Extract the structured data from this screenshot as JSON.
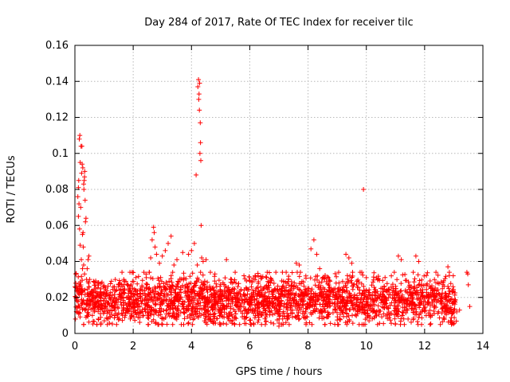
{
  "chart_data": {
    "type": "scatter",
    "title": "Day 284 of 2017, Rate Of TEC Index for receiver tilc",
    "xlabel": "GPS time / hours",
    "ylabel": "ROTI / TECUs",
    "xlim": [
      0,
      14
    ],
    "ylim": [
      0,
      0.16
    ],
    "xticks": [
      0,
      2,
      4,
      6,
      8,
      10,
      12,
      14
    ],
    "xtick_labels": [
      "0",
      "2",
      "4",
      "6",
      "8",
      "10",
      "12",
      "14"
    ],
    "yticks": [
      0,
      0.02,
      0.04,
      0.06,
      0.08,
      0.1,
      0.12,
      0.14,
      0.16
    ],
    "ytick_labels": [
      "0",
      "0.02",
      "0.04",
      "0.06",
      "0.08",
      "0.1",
      "0.12",
      "0.14",
      "0.16"
    ],
    "grid": true,
    "marker": "+",
    "marker_color": "#ff0000",
    "series": [
      {
        "name": "ROTI",
        "points": [
          [
            0.02,
            0.008
          ],
          [
            0.05,
            0.02
          ],
          [
            0.08,
            0.025
          ],
          [
            0.1,
            0.076
          ],
          [
            0.12,
            0.081
          ],
          [
            0.13,
            0.085
          ],
          [
            0.15,
            0.108
          ],
          [
            0.17,
            0.11
          ],
          [
            0.18,
            0.095
          ],
          [
            0.2,
            0.07
          ],
          [
            0.21,
            0.104
          ],
          [
            0.23,
            0.089
          ],
          [
            0.24,
            0.104
          ],
          [
            0.25,
            0.094
          ],
          [
            0.26,
            0.055
          ],
          [
            0.27,
            0.092
          ],
          [
            0.28,
            0.056
          ],
          [
            0.29,
            0.048
          ],
          [
            0.3,
            0.083
          ],
          [
            0.31,
            0.08
          ],
          [
            0.32,
            0.085
          ],
          [
            0.33,
            0.087
          ],
          [
            0.34,
            0.09
          ],
          [
            0.35,
            0.074
          ],
          [
            0.36,
            0.062
          ],
          [
            0.38,
            0.064
          ],
          [
            0.4,
            0.03
          ],
          [
            0.42,
            0.036
          ],
          [
            0.45,
            0.041
          ],
          [
            0.48,
            0.043
          ],
          [
            0.22,
            0.041
          ],
          [
            0.26,
            0.036
          ],
          [
            0.3,
            0.038
          ],
          [
            0.33,
            0.033
          ],
          [
            0.18,
            0.049
          ],
          [
            0.12,
            0.065
          ],
          [
            0.14,
            0.072
          ],
          [
            0.16,
            0.058
          ],
          [
            0.6,
            0.01
          ],
          [
            0.8,
            0.008
          ],
          [
            1.0,
            0.012
          ],
          [
            1.2,
            0.009
          ],
          [
            1.5,
            0.026
          ],
          [
            1.7,
            0.029
          ],
          [
            1.9,
            0.024
          ],
          [
            2.45,
            0.031
          ],
          [
            2.55,
            0.034
          ],
          [
            2.6,
            0.042
          ],
          [
            2.65,
            0.052
          ],
          [
            2.7,
            0.059
          ],
          [
            2.72,
            0.056
          ],
          [
            2.75,
            0.048
          ],
          [
            2.8,
            0.044
          ],
          [
            2.9,
            0.039
          ],
          [
            3.0,
            0.043
          ],
          [
            3.1,
            0.046
          ],
          [
            3.2,
            0.05
          ],
          [
            3.3,
            0.054
          ],
          [
            3.4,
            0.038
          ],
          [
            3.5,
            0.041
          ],
          [
            3.7,
            0.045
          ],
          [
            3.9,
            0.044
          ],
          [
            4.0,
            0.046
          ],
          [
            4.1,
            0.05
          ],
          [
            4.16,
            0.088
          ],
          [
            4.2,
            0.038
          ],
          [
            4.22,
            0.137
          ],
          [
            4.24,
            0.141
          ],
          [
            4.25,
            0.13
          ],
          [
            4.26,
            0.133
          ],
          [
            4.27,
            0.124
          ],
          [
            4.28,
            0.139
          ],
          [
            4.29,
            0.1
          ],
          [
            4.3,
            0.117
          ],
          [
            4.31,
            0.106
          ],
          [
            4.32,
            0.096
          ],
          [
            4.33,
            0.06
          ],
          [
            4.35,
            0.042
          ],
          [
            4.4,
            0.04
          ],
          [
            4.5,
            0.041
          ],
          [
            5.2,
            0.041
          ],
          [
            5.5,
            0.034
          ],
          [
            6.0,
            0.029
          ],
          [
            7.0,
            0.004
          ],
          [
            7.1,
            0.005
          ],
          [
            7.3,
            0.008
          ],
          [
            7.6,
            0.039
          ],
          [
            7.7,
            0.038
          ],
          [
            8.1,
            0.047
          ],
          [
            8.2,
            0.052
          ],
          [
            8.3,
            0.044
          ],
          [
            8.4,
            0.036
          ],
          [
            9.3,
            0.044
          ],
          [
            9.4,
            0.042
          ],
          [
            9.5,
            0.039
          ],
          [
            9.9,
            0.08
          ],
          [
            10.0,
            0.031
          ],
          [
            11.1,
            0.043
          ],
          [
            11.2,
            0.041
          ],
          [
            11.7,
            0.043
          ],
          [
            11.8,
            0.04
          ],
          [
            12.8,
            0.037
          ],
          [
            12.85,
            0.034
          ],
          [
            13.1,
            0.012
          ],
          [
            13.2,
            0.013
          ],
          [
            13.45,
            0.034
          ],
          [
            13.48,
            0.033
          ],
          [
            13.5,
            0.027
          ],
          [
            13.55,
            0.015
          ]
        ]
      }
    ],
    "noise_band": {
      "description": "dense background cluster of + markers spanning x 0 to 13.1 h with ROTI mostly 0.01 to 0.03 TECU/s, sampled procedurally",
      "x_range": [
        0,
        13.1
      ],
      "baseline": 0.018,
      "spread": 0.008,
      "count": 2600,
      "seed": 284
    }
  }
}
